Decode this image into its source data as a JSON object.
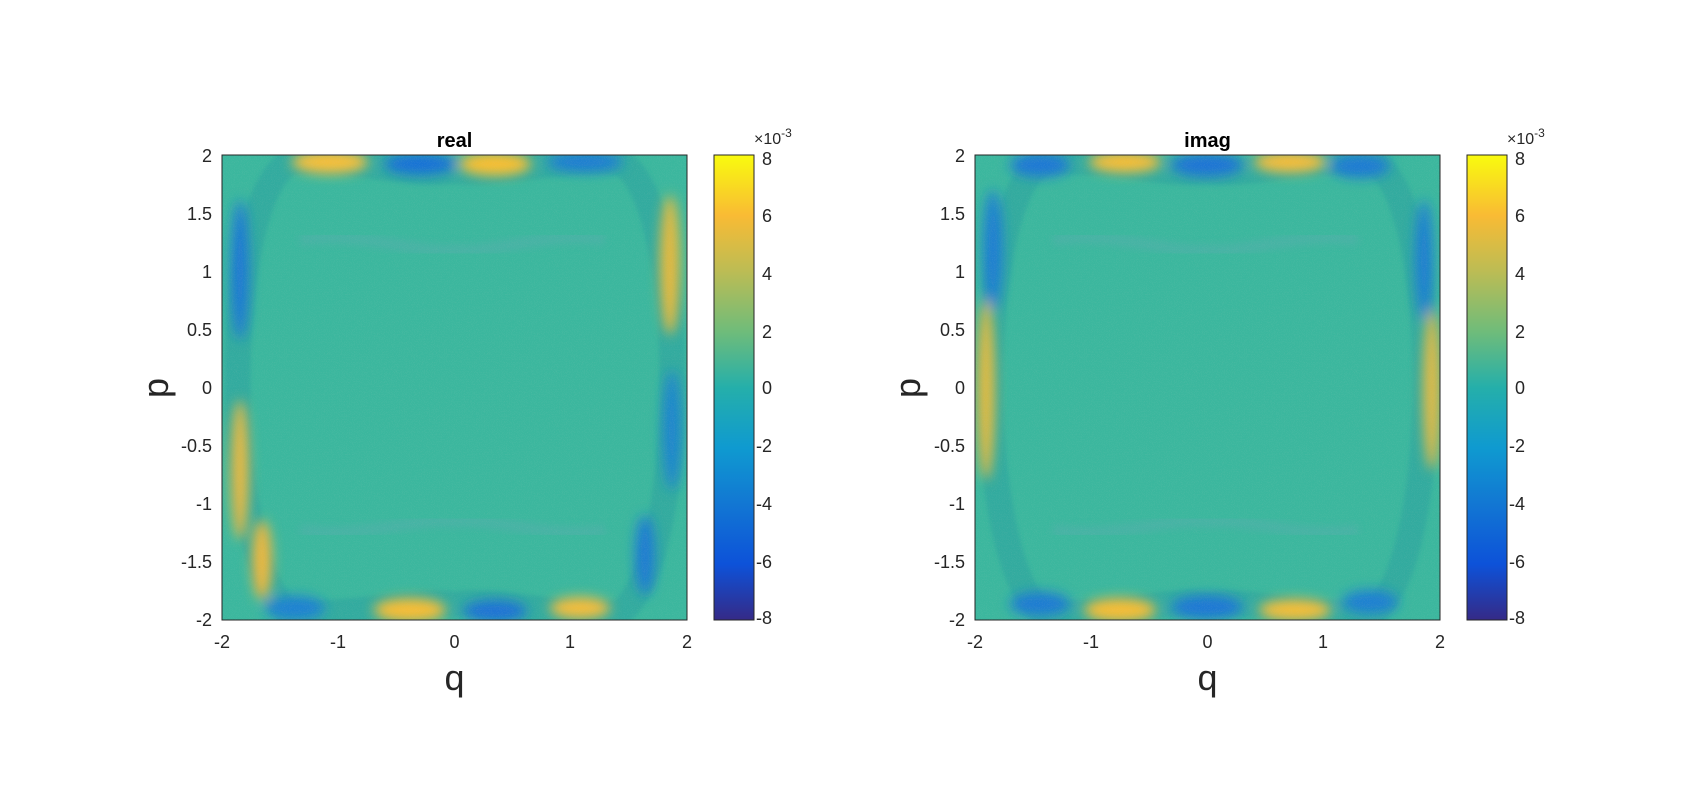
{
  "chart_data": [
    {
      "type": "heatmap",
      "title": "real",
      "xlabel": "q",
      "ylabel": "p",
      "xlim": [
        -2,
        2
      ],
      "ylim": [
        -2,
        2
      ],
      "x_ticks": [
        "-2",
        "-1",
        "0",
        "1",
        "2"
      ],
      "y_ticks": [
        "2",
        "1.5",
        "1",
        "0.5",
        "0",
        "-0.5",
        "-1",
        "-1.5",
        "-2"
      ],
      "colorbar": {
        "range": [
          -0.008,
          0.008
        ],
        "multiplier": "×10",
        "exponent": "-3",
        "ticks": [
          "8",
          "6",
          "4",
          "2",
          "0",
          "-2",
          "-4",
          "-6",
          "-8"
        ],
        "colormap": "parula"
      },
      "grid": false
    },
    {
      "type": "heatmap",
      "title": "imag",
      "xlabel": "q",
      "ylabel": "p",
      "xlim": [
        -2,
        2
      ],
      "ylim": [
        -2,
        2
      ],
      "x_ticks": [
        "-2",
        "-1",
        "0",
        "1",
        "2"
      ],
      "y_ticks": [
        "2",
        "1.5",
        "1",
        "0.5",
        "0",
        "-0.5",
        "-1",
        "-1.5",
        "-2"
      ],
      "colorbar": {
        "range": [
          -0.008,
          0.008
        ],
        "multiplier": "×10",
        "exponent": "-3",
        "ticks": [
          "8",
          "6",
          "4",
          "2",
          "0",
          "-2",
          "-4",
          "-6",
          "-8"
        ],
        "colormap": "parula"
      },
      "grid": false
    }
  ]
}
